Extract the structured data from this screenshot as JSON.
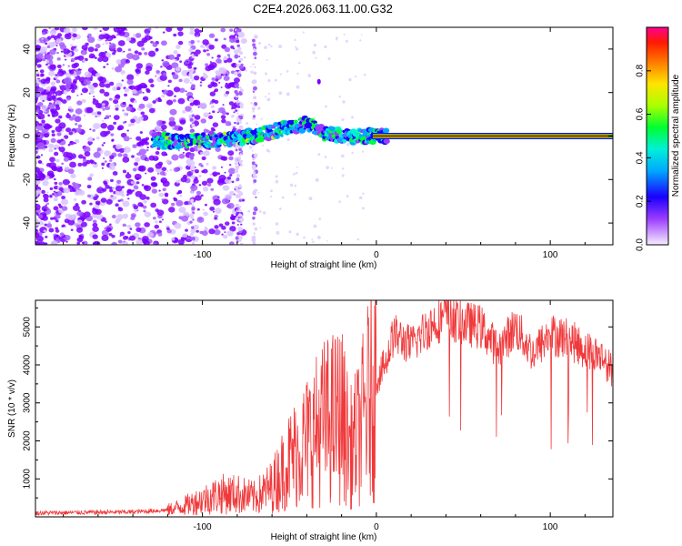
{
  "title": "C2E4.2026.063.11.00.G32",
  "colors": {
    "snr_line": "#f0393b",
    "signal_trace": "#ff2a2a",
    "noise": "#7a00ff"
  },
  "chart_data": [
    {
      "type": "heatmap",
      "title": "C2E4.2026.063.11.00.G32",
      "xlabel": "Height of straight line (km)",
      "ylabel": "Frequency (Hz)",
      "xlim": [
        -196,
        136
      ],
      "ylim": [
        -50,
        50
      ],
      "xticks": [
        -100,
        0,
        100
      ],
      "yticks": [
        -40,
        -20,
        0,
        20,
        40
      ],
      "colorbar": {
        "label": "Normalized spectral amplitude",
        "range": [
          0,
          1
        ],
        "ticks": [
          0.0,
          0.2,
          0.4,
          0.6,
          0.8
        ],
        "tick_labels": [
          "0.0",
          "0.2",
          "0.4",
          "0.6",
          "0.8"
        ]
      },
      "signal_trace": {
        "x": [
          -128,
          -115,
          -100,
          -90,
          -80,
          -70,
          -60,
          -50,
          -40,
          -35,
          -30,
          -25,
          -20,
          -15,
          -10,
          -5,
          0,
          5,
          10,
          40,
          80,
          120,
          136
        ],
        "y": [
          -2,
          -2.5,
          -2,
          -1.5,
          -1,
          0,
          2,
          4,
          6,
          3,
          1,
          1,
          0,
          -0.5,
          0,
          0,
          0,
          0,
          0,
          0,
          0,
          0,
          0
        ]
      }
    },
    {
      "type": "line",
      "xlabel": "Height of straight line (km)",
      "ylabel": "SNR (10 * v/v)",
      "xlim": [
        -196,
        136
      ],
      "ylim": [
        0,
        5700
      ],
      "xticks": [
        -100,
        0,
        100
      ],
      "yticks": [
        1000,
        2000,
        3000,
        4000,
        5000
      ],
      "series": [
        {
          "name": "SNR",
          "x": [
            -196,
            -180,
            -160,
            -140,
            -120,
            -110,
            -100,
            -90,
            -80,
            -70,
            -60,
            -50,
            -40,
            -30,
            -20,
            -15,
            -10,
            -5,
            0,
            5,
            10,
            20,
            30,
            40,
            50,
            60,
            70,
            80,
            90,
            100,
            110,
            120,
            130,
            136
          ],
          "y": [
            100,
            110,
            120,
            130,
            180,
            300,
            450,
            600,
            600,
            500,
            800,
            1500,
            2000,
            2500,
            2700,
            1800,
            2200,
            3000,
            3600,
            4000,
            4800,
            4500,
            5000,
            5300,
            5100,
            5000,
            4400,
            5000,
            4300,
            4800,
            4700,
            4400,
            4200,
            3800
          ]
        }
      ]
    }
  ]
}
